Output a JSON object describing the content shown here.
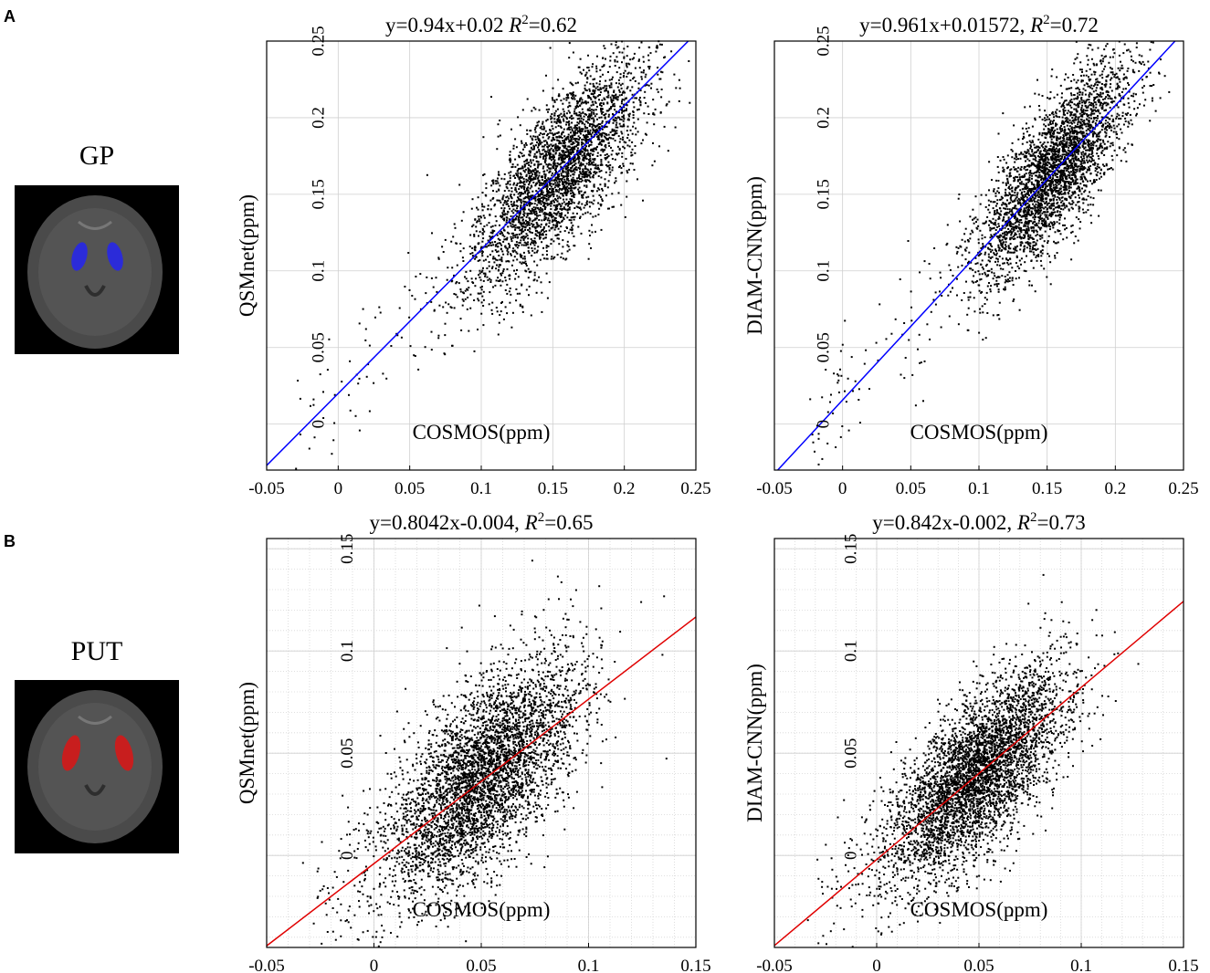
{
  "panels": {
    "A": {
      "letter": "A",
      "region": "GP",
      "region_color": "#2b2bd9"
    },
    "B": {
      "letter": "B",
      "region": "PUT",
      "region_color": "#c81e1e"
    }
  },
  "chart_data": [
    {
      "id": "A-left",
      "type": "scatter",
      "title": "y=0.94x+0.02",
      "r2_label": "R",
      "r2_sup": "2",
      "r2_value": "=0.62",
      "xlabel": "COSMOS(ppm)",
      "ylabel": "QSMnet(ppm)",
      "xlim": [
        -0.05,
        0.25
      ],
      "ylim": [
        -0.03,
        0.25
      ],
      "xticks": [
        -0.05,
        0,
        0.05,
        0.1,
        0.15,
        0.2,
        0.25
      ],
      "yticks": [
        0,
        0.05,
        0.1,
        0.15,
        0.2,
        0.25
      ],
      "xtick_labels": [
        "-0.05",
        "0",
        "0.05",
        "0.1",
        "0.15",
        "0.2",
        "0.25"
      ],
      "ytick_labels": [
        "0",
        "0.05",
        "0.1",
        "0.15",
        "0.2",
        "0.25"
      ],
      "grid": "major",
      "fit": {
        "slope": 0.94,
        "intercept": 0.02,
        "color": "#0000ff"
      },
      "cloud": {
        "count": 3200,
        "center": [
          0.155,
          0.165
        ],
        "spread": [
          0.03,
          0.025
        ],
        "tail_count": 140,
        "tail_from": -0.03,
        "seed": 11
      }
    },
    {
      "id": "A-right",
      "type": "scatter",
      "title": "y=0.961x+0.01572,",
      "r2_label": "R",
      "r2_sup": "2",
      "r2_value": "=0.72",
      "xlabel": "COSMOS(ppm)",
      "ylabel": "DIAM-CNN(ppm)",
      "xlim": [
        -0.05,
        0.25
      ],
      "ylim": [
        -0.03,
        0.25
      ],
      "xticks": [
        -0.05,
        0,
        0.05,
        0.1,
        0.15,
        0.2,
        0.25
      ],
      "yticks": [
        0,
        0.05,
        0.1,
        0.15,
        0.2,
        0.25
      ],
      "xtick_labels": [
        "-0.05",
        "0",
        "0.05",
        "0.1",
        "0.15",
        "0.2",
        "0.25"
      ],
      "ytick_labels": [
        "0",
        "0.05",
        "0.1",
        "0.15",
        "0.2",
        "0.25"
      ],
      "grid": "major",
      "fit": {
        "slope": 0.961,
        "intercept": 0.01572,
        "color": "#0000ff"
      },
      "cloud": {
        "count": 3200,
        "center": [
          0.155,
          0.165
        ],
        "spread": [
          0.028,
          0.022
        ],
        "tail_count": 140,
        "tail_from": -0.025,
        "seed": 23
      }
    },
    {
      "id": "B-left",
      "type": "scatter",
      "title": "y=0.8042x-0.004,",
      "r2_label": "R",
      "r2_sup": "2",
      "r2_value": "=0.65",
      "xlabel": "COSMOS(ppm)",
      "ylabel": "QSMnet(ppm)",
      "xlim": [
        -0.05,
        0.15
      ],
      "ylim": [
        -0.045,
        0.155
      ],
      "xticks": [
        -0.05,
        0,
        0.05,
        0.1,
        0.15
      ],
      "yticks": [
        0,
        0.05,
        0.1,
        0.15
      ],
      "xtick_labels": [
        "-0.05",
        "0",
        "0.05",
        "0.1",
        "0.15"
      ],
      "ytick_labels": [
        "0",
        "0.05",
        "0.1",
        "0.15"
      ],
      "grid": "minor",
      "fit": {
        "slope": 0.8042,
        "intercept": -0.004,
        "color": "#e00000"
      },
      "cloud": {
        "count": 4200,
        "center": [
          0.05,
          0.038
        ],
        "spread": [
          0.022,
          0.022
        ],
        "tail_count": 120,
        "tail_from": -0.03,
        "seed": 37
      }
    },
    {
      "id": "B-right",
      "type": "scatter",
      "title": "y=0.842x-0.002,",
      "r2_label": "R",
      "r2_sup": "2",
      "r2_value": "=0.73",
      "xlabel": "COSMOS(ppm)",
      "ylabel": "DIAM-CNN(ppm)",
      "xlim": [
        -0.05,
        0.15
      ],
      "ylim": [
        -0.045,
        0.155
      ],
      "xticks": [
        -0.05,
        0,
        0.05,
        0.1,
        0.15
      ],
      "yticks": [
        0,
        0.05,
        0.1,
        0.15
      ],
      "xtick_labels": [
        "-0.05",
        "0",
        "0.05",
        "0.1",
        "0.15"
      ],
      "ytick_labels": [
        "0",
        "0.05",
        "0.1",
        "0.15"
      ],
      "grid": "minor",
      "fit": {
        "slope": 0.842,
        "intercept": -0.002,
        "color": "#e00000"
      },
      "cloud": {
        "count": 4200,
        "center": [
          0.05,
          0.04
        ],
        "spread": [
          0.022,
          0.019
        ],
        "tail_count": 120,
        "tail_from": -0.03,
        "seed": 53
      }
    }
  ]
}
